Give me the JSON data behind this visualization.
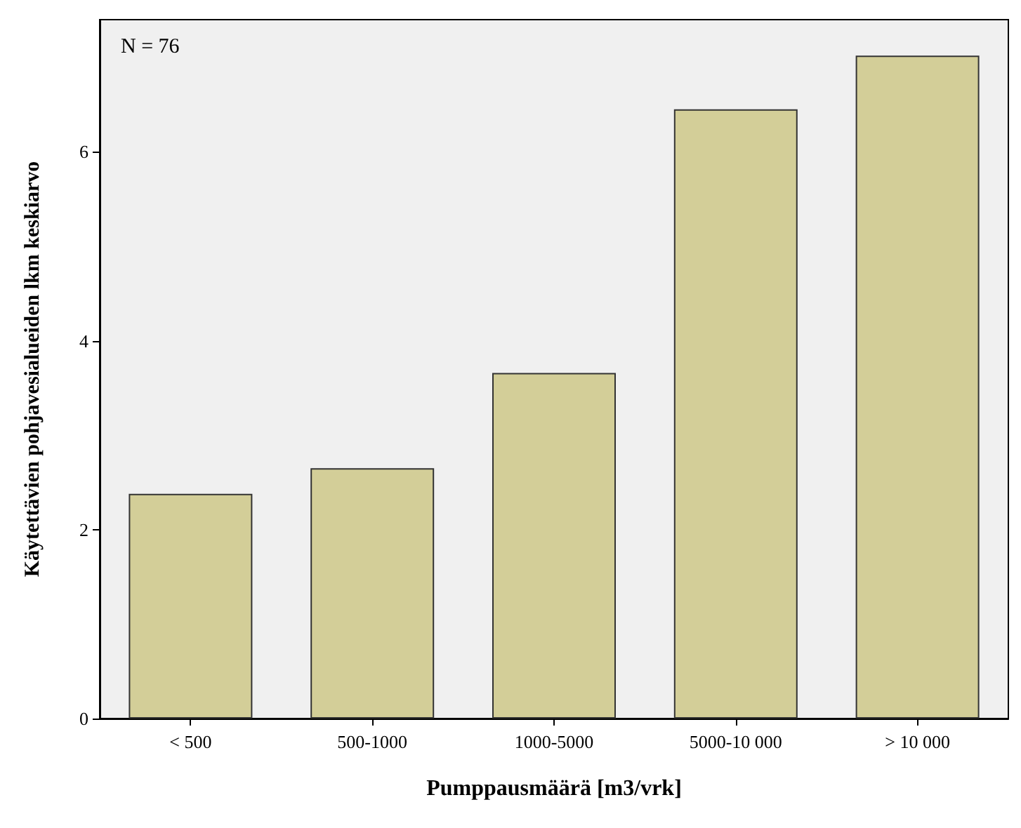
{
  "chart_data": {
    "type": "bar",
    "xlabel": "Pumppausmäärä [m3/vrk]",
    "ylabel": "Käytettävien pohjavesialueiden lkm keskiarvo",
    "categories": [
      "< 500",
      "500-1000",
      "1000-5000",
      "5000-10 000",
      "> 10 000"
    ],
    "values": [
      2.38,
      2.65,
      3.66,
      6.45,
      7.02
    ],
    "color": "#d3ce98",
    "ylim": [
      0,
      7.4
    ],
    "yticks": [
      0,
      2,
      4,
      6
    ],
    "grid": false,
    "annotations": [
      "N = 76"
    ]
  }
}
